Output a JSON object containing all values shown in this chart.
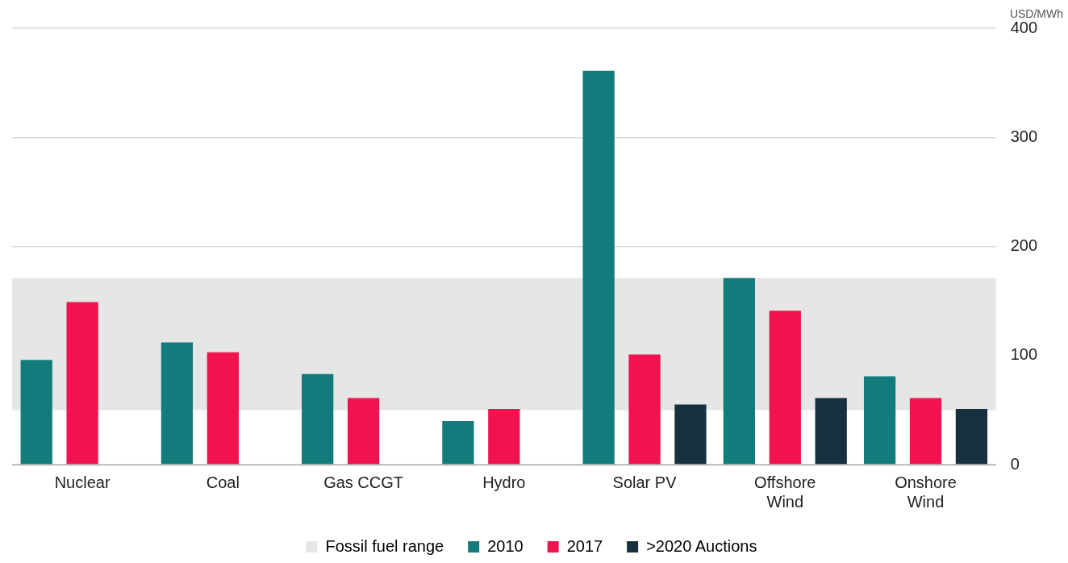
{
  "chart_data": {
    "type": "bar",
    "ylabel": "USD/MWh",
    "categories": [
      "Nuclear",
      "Coal",
      "Gas CCGT",
      "Hydro",
      "Solar PV",
      "Offshore Wind",
      "Onshore Wind"
    ],
    "series": [
      {
        "name": "2010",
        "color": "#127c7c",
        "values": [
          96,
          112,
          83,
          40,
          361,
          171,
          81
        ]
      },
      {
        "name": "2017",
        "color": "#f0134d",
        "values": [
          149,
          103,
          61,
          51,
          101,
          141,
          61
        ]
      },
      {
        "name": ">2020 Auctions",
        "color": "#16303f",
        "values": [
          null,
          null,
          null,
          null,
          55,
          61,
          51
        ]
      }
    ],
    "ylim": [
      0,
      400
    ],
    "yticks": [
      0,
      100,
      200,
      300,
      400
    ],
    "grid": "y",
    "legend": "bottom",
    "bands": [
      {
        "axis": "y",
        "from": 50,
        "to": 171,
        "label": "Fossil fuel range",
        "color": "#e6e6e6"
      }
    ]
  }
}
